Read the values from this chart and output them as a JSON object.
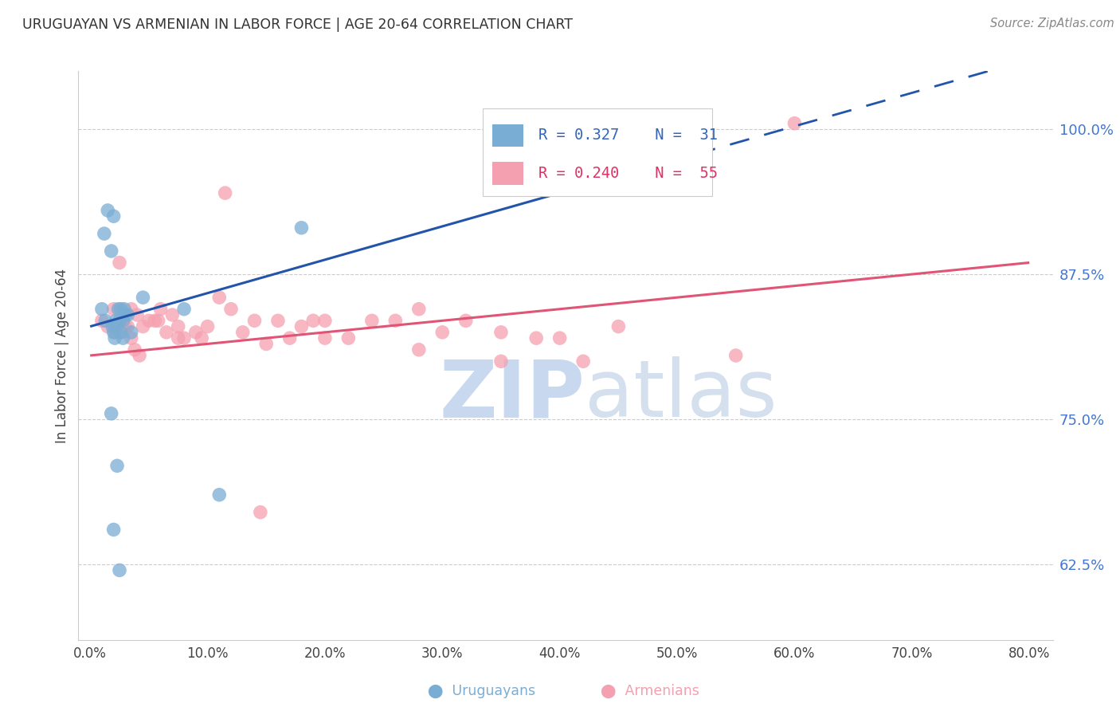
{
  "title": "URUGUAYAN VS ARMENIAN IN LABOR FORCE | AGE 20-64 CORRELATION CHART",
  "source": "Source: ZipAtlas.com",
  "ylabel": "In Labor Force | Age 20-64",
  "x_tick_labels": [
    "0.0%",
    "10.0%",
    "20.0%",
    "30.0%",
    "40.0%",
    "50.0%",
    "60.0%",
    "70.0%",
    "80.0%"
  ],
  "x_tick_values": [
    0.0,
    10.0,
    20.0,
    30.0,
    40.0,
    50.0,
    60.0,
    70.0,
    80.0
  ],
  "y_tick_labels": [
    "62.5%",
    "75.0%",
    "87.5%",
    "100.0%"
  ],
  "y_tick_values": [
    62.5,
    75.0,
    87.5,
    100.0
  ],
  "xlim": [
    -1.0,
    82.0
  ],
  "ylim": [
    56.0,
    105.0
  ],
  "watermark_zip": "ZIP",
  "watermark_atlas": "atlas",
  "blue_color": "#7aadd4",
  "pink_color": "#f5a0b0",
  "blue_line_color": "#2255aa",
  "pink_line_color": "#e05575",
  "blue_trend": [
    83.0,
    106.0
  ],
  "blue_solid_end_x": 40.0,
  "pink_trend": [
    80.5,
    88.5
  ],
  "uru_x": [
    1.2,
    1.5,
    2.0,
    1.8,
    1.0,
    1.3,
    1.9,
    2.2,
    2.4,
    2.1,
    2.0,
    2.3,
    2.5,
    2.8,
    3.0,
    3.2,
    2.6,
    2.9,
    4.5,
    8.0,
    2.1,
    18.0,
    2.3,
    2.0,
    2.5,
    40.0,
    2.6,
    11.0,
    1.8,
    2.8,
    3.5
  ],
  "uru_y": [
    91.0,
    93.0,
    92.5,
    89.5,
    84.5,
    83.5,
    83.0,
    83.5,
    84.5,
    83.0,
    82.5,
    83.0,
    83.5,
    83.5,
    84.0,
    84.0,
    84.5,
    84.5,
    85.5,
    84.5,
    82.0,
    91.5,
    71.0,
    65.5,
    62.0,
    100.0,
    82.5,
    68.5,
    75.5,
    82.0,
    82.5
  ],
  "arm_x": [
    1.0,
    2.0,
    1.5,
    2.5,
    3.0,
    3.5,
    2.8,
    3.2,
    4.0,
    4.5,
    5.0,
    5.5,
    6.0,
    6.5,
    7.0,
    7.5,
    8.0,
    9.0,
    10.0,
    11.0,
    12.0,
    13.0,
    14.0,
    15.0,
    16.0,
    17.0,
    18.0,
    19.0,
    20.0,
    22.0,
    24.0,
    26.0,
    28.0,
    30.0,
    32.0,
    35.0,
    38.0,
    40.0,
    42.0,
    45.0,
    3.5,
    4.2,
    7.5,
    14.5,
    2.1,
    2.6,
    3.8,
    5.8,
    9.5,
    11.5,
    20.0,
    28.0,
    35.0,
    55.0,
    60.0
  ],
  "arm_y": [
    83.5,
    84.5,
    83.0,
    88.5,
    83.0,
    84.5,
    83.5,
    83.0,
    84.0,
    83.0,
    83.5,
    83.5,
    84.5,
    82.5,
    84.0,
    83.0,
    82.0,
    82.5,
    83.0,
    85.5,
    84.5,
    82.5,
    83.5,
    81.5,
    83.5,
    82.0,
    83.0,
    83.5,
    82.0,
    82.0,
    83.5,
    83.5,
    84.5,
    82.5,
    83.5,
    82.5,
    82.0,
    82.0,
    80.0,
    83.0,
    82.0,
    80.5,
    82.0,
    67.0,
    82.5,
    82.5,
    81.0,
    83.5,
    82.0,
    94.5,
    83.5,
    81.0,
    80.0,
    80.5,
    100.5
  ],
  "legend_r1": "R = 0.327",
  "legend_n1": "N =  31",
  "legend_r2": "R = 0.240",
  "legend_n2": "N =  55",
  "bottom_label1": "Uruguayans",
  "bottom_label2": "Armenians"
}
